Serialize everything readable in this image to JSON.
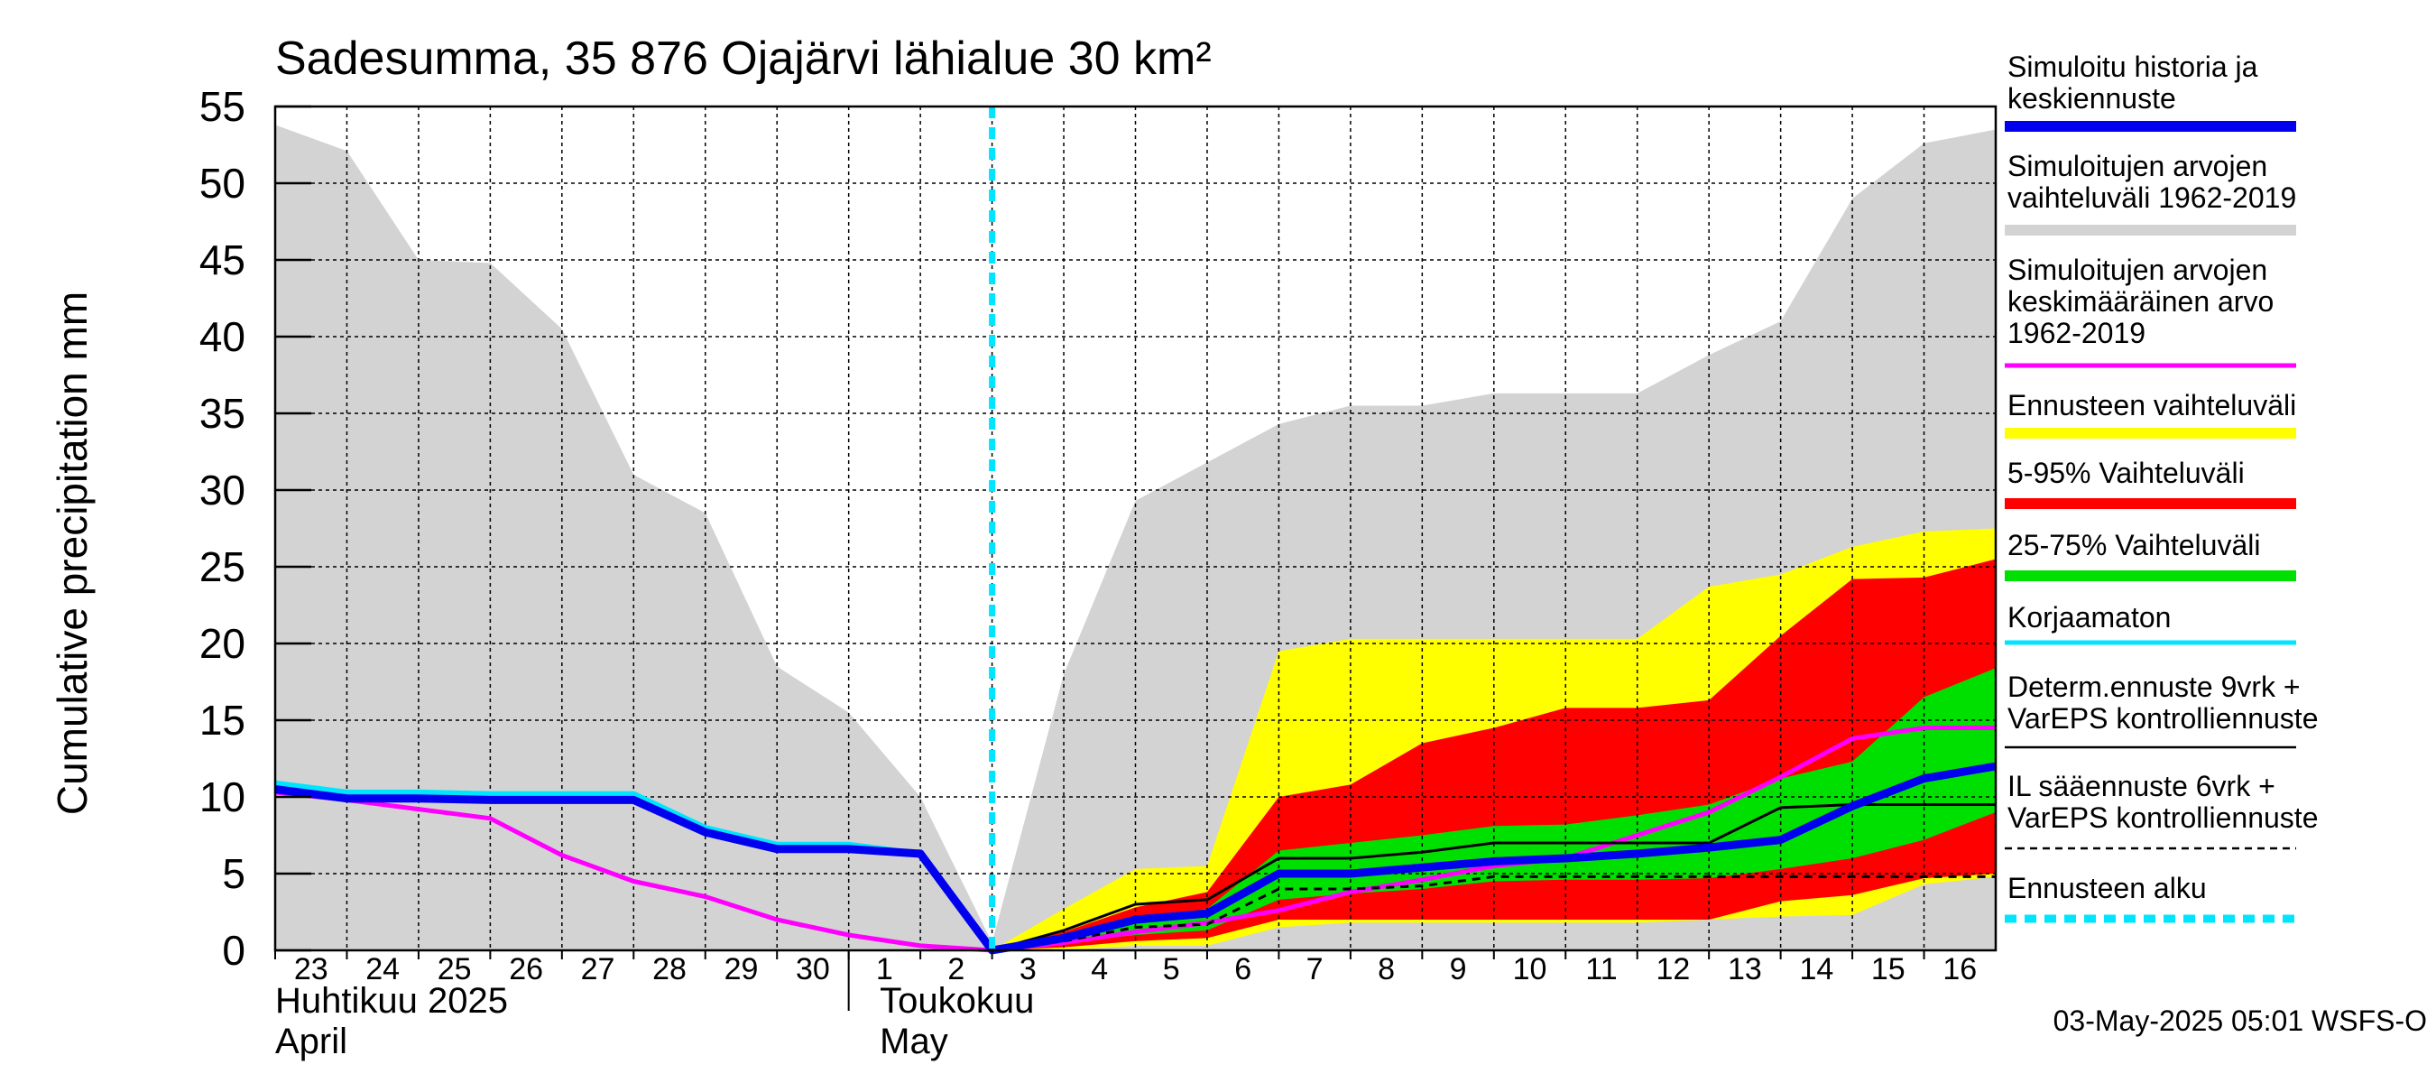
{
  "chart_data": {
    "type": "area",
    "title": "Sadesumma, 35 876 Ojajärvi lähialue 30 km²",
    "ylabel": "Cumulative precipitation   mm",
    "ylim": [
      0,
      55
    ],
    "yticks": [
      0,
      5,
      10,
      15,
      20,
      25,
      30,
      35,
      40,
      45,
      50,
      55
    ],
    "x": [
      "2025-04-23",
      "2025-04-24",
      "2025-04-25",
      "2025-04-26",
      "2025-04-27",
      "2025-04-28",
      "2025-04-29",
      "2025-04-30",
      "2025-05-01",
      "2025-05-02",
      "2025-05-03",
      "2025-05-04",
      "2025-05-05",
      "2025-05-06",
      "2025-05-07",
      "2025-05-08",
      "2025-05-09",
      "2025-05-10",
      "2025-05-11",
      "2025-05-12",
      "2025-05-13",
      "2025-05-14",
      "2025-05-15",
      "2025-05-16",
      "2025-05-17"
    ],
    "xtick_labels": [
      "23",
      "24",
      "25",
      "26",
      "27",
      "28",
      "29",
      "30",
      "1",
      "2",
      "3",
      "4",
      "5",
      "6",
      "7",
      "8",
      "9",
      "10",
      "11",
      "12",
      "13",
      "14",
      "15",
      "16"
    ],
    "month_labels": [
      {
        "line1": "Huhtikuu  2025",
        "line2": "April"
      },
      {
        "line1": "Toukokuu",
        "line2": "May"
      }
    ],
    "forecast_start": "2025-05-03",
    "series": [
      {
        "name": "Simuloitujen arvojen vaihteluväli 1962-2019",
        "kind": "band",
        "color": "#d3d3d3",
        "x": [
          "2025-04-23",
          "2025-04-24",
          "2025-04-25",
          "2025-04-26",
          "2025-04-27",
          "2025-04-28",
          "2025-04-29",
          "2025-04-30",
          "2025-05-01",
          "2025-05-02",
          "2025-05-03",
          "2025-05-04",
          "2025-05-05",
          "2025-05-06",
          "2025-05-07",
          "2025-05-08",
          "2025-05-09",
          "2025-05-10",
          "2025-05-11",
          "2025-05-12",
          "2025-05-13",
          "2025-05-14",
          "2025-05-15",
          "2025-05-16",
          "2025-05-17"
        ],
        "upper": [
          53.8,
          52.1,
          45.0,
          44.8,
          40.5,
          31.0,
          28.5,
          18.5,
          15.5,
          10.0,
          0.5,
          18.0,
          29.3,
          31.8,
          34.3,
          35.5,
          35.5,
          36.3,
          36.3,
          36.3,
          38.8,
          41.0,
          49.0,
          52.6,
          53.5
        ],
        "lower": [
          0,
          0,
          0,
          0,
          0,
          0,
          0,
          0,
          0,
          0,
          0,
          0,
          0,
          0,
          0,
          0,
          0,
          0,
          0,
          0,
          0,
          0,
          0,
          0,
          0
        ]
      },
      {
        "name": "Ennusteen vaihteluväli",
        "kind": "band",
        "color": "#ffff00",
        "x": [
          "2025-05-03",
          "2025-05-04",
          "2025-05-05",
          "2025-05-06",
          "2025-05-07",
          "2025-05-08",
          "2025-05-09",
          "2025-05-10",
          "2025-05-11",
          "2025-05-12",
          "2025-05-13",
          "2025-05-14",
          "2025-05-15",
          "2025-05-16",
          "2025-05-17"
        ],
        "upper": [
          0,
          2.7,
          5.3,
          5.5,
          19.5,
          20.3,
          20.3,
          20.3,
          20.3,
          20.3,
          23.7,
          24.5,
          26.3,
          27.3,
          27.5
        ],
        "lower": [
          0,
          0,
          0.3,
          0.3,
          1.5,
          1.8,
          1.8,
          1.8,
          1.8,
          1.8,
          2.0,
          2.2,
          2.3,
          4.3,
          4.8
        ]
      },
      {
        "name": "5-95% Vaihteluväli",
        "kind": "band",
        "color": "#ff0000",
        "x": [
          "2025-05-03",
          "2025-05-04",
          "2025-05-05",
          "2025-05-06",
          "2025-05-07",
          "2025-05-08",
          "2025-05-09",
          "2025-05-10",
          "2025-05-11",
          "2025-05-12",
          "2025-05-13",
          "2025-05-14",
          "2025-05-15",
          "2025-05-16",
          "2025-05-17"
        ],
        "upper": [
          0,
          1.2,
          2.8,
          3.8,
          10.0,
          10.8,
          13.5,
          14.5,
          15.8,
          15.8,
          16.3,
          20.5,
          24.2,
          24.3,
          25.5
        ],
        "lower": [
          0,
          0.2,
          0.6,
          0.8,
          2.0,
          2.0,
          2.0,
          2.0,
          2.0,
          2.0,
          2.0,
          3.2,
          3.6,
          4.7,
          5.0
        ]
      },
      {
        "name": "25-75% Vaihteluväli",
        "kind": "band",
        "color": "#00e000",
        "x": [
          "2025-05-03",
          "2025-05-04",
          "2025-05-05",
          "2025-05-06",
          "2025-05-07",
          "2025-05-08",
          "2025-05-09",
          "2025-05-10",
          "2025-05-11",
          "2025-05-12",
          "2025-05-13",
          "2025-05-14",
          "2025-05-15",
          "2025-05-16",
          "2025-05-17"
        ],
        "upper": [
          0,
          0.8,
          2.0,
          2.7,
          6.5,
          7.0,
          7.5,
          8.1,
          8.2,
          8.8,
          9.5,
          11.2,
          12.3,
          16.5,
          18.4
        ],
        "lower": [
          0,
          0.5,
          1.0,
          1.3,
          3.3,
          3.7,
          4.0,
          4.5,
          4.6,
          4.6,
          4.7,
          5.3,
          6.0,
          7.2,
          9.0
        ]
      },
      {
        "name": "Simuloitujen arvojen keskimääräinen arvo 1962-2019",
        "kind": "line",
        "color": "#ff00ff",
        "width": 5,
        "x": [
          "2025-04-23",
          "2025-04-24",
          "2025-04-25",
          "2025-04-26",
          "2025-04-27",
          "2025-04-28",
          "2025-04-29",
          "2025-04-30",
          "2025-05-01",
          "2025-05-02",
          "2025-05-03",
          "2025-05-04",
          "2025-05-05",
          "2025-05-06",
          "2025-05-07",
          "2025-05-08",
          "2025-05-09",
          "2025-05-10",
          "2025-05-11",
          "2025-05-12",
          "2025-05-13",
          "2025-05-14",
          "2025-05-15",
          "2025-05-16",
          "2025-05-17"
        ],
        "values": [
          10.3,
          9.8,
          9.2,
          8.6,
          6.2,
          4.5,
          3.5,
          2.0,
          1.0,
          0.3,
          0,
          0.5,
          1.2,
          1.8,
          2.6,
          3.8,
          4.6,
          5.5,
          6.0,
          7.5,
          9.0,
          11.3,
          13.8,
          14.5,
          14.5
        ]
      },
      {
        "name": "Korjaamaton",
        "kind": "line",
        "color": "#00e5ff",
        "width": 6,
        "x": [
          "2025-04-23",
          "2025-04-24",
          "2025-04-25",
          "2025-04-26",
          "2025-04-27",
          "2025-04-28",
          "2025-04-29",
          "2025-04-30",
          "2025-05-01",
          "2025-05-02",
          "2025-05-03"
        ],
        "values": [
          10.9,
          10.3,
          10.3,
          10.2,
          10.2,
          10.2,
          8.0,
          6.9,
          6.9,
          6.3,
          0
        ]
      },
      {
        "name": "IL sääennuste 6vrk + VarEPS kontrolliennuste",
        "kind": "line",
        "color": "#000000",
        "width": 3,
        "dash": "9,7",
        "x": [
          "2025-05-03",
          "2025-05-04",
          "2025-05-05",
          "2025-05-06",
          "2025-05-07",
          "2025-05-08",
          "2025-05-09",
          "2025-05-10",
          "2025-05-11",
          "2025-05-12",
          "2025-05-13",
          "2025-05-14",
          "2025-05-15",
          "2025-05-16",
          "2025-05-17"
        ],
        "values": [
          0,
          0.6,
          1.5,
          1.7,
          4.0,
          4.0,
          4.2,
          4.8,
          4.8,
          4.8,
          4.8,
          4.8,
          4.8,
          4.8,
          4.8
        ]
      },
      {
        "name": "Determ.ennuste 9vrk + VarEPS kontrolliennuste",
        "kind": "line",
        "color": "#000000",
        "width": 3,
        "x": [
          "2025-05-03",
          "2025-05-04",
          "2025-05-05",
          "2025-05-06",
          "2025-05-07",
          "2025-05-08",
          "2025-05-09",
          "2025-05-10",
          "2025-05-11",
          "2025-05-12",
          "2025-05-13",
          "2025-05-14",
          "2025-05-15",
          "2025-05-16",
          "2025-05-17"
        ],
        "values": [
          0,
          1.3,
          3.0,
          3.3,
          6.0,
          6.0,
          6.4,
          7.0,
          7.0,
          7.0,
          7.0,
          9.3,
          9.5,
          9.5,
          9.5
        ]
      },
      {
        "name": "Simuloitu historia ja keskiennuste",
        "kind": "line",
        "color": "#0000ee",
        "width": 9,
        "x": [
          "2025-04-23",
          "2025-04-24",
          "2025-04-25",
          "2025-04-26",
          "2025-04-27",
          "2025-04-28",
          "2025-04-29",
          "2025-04-30",
          "2025-05-01",
          "2025-05-02",
          "2025-05-03",
          "2025-05-04",
          "2025-05-05",
          "2025-05-06",
          "2025-05-07",
          "2025-05-08",
          "2025-05-09",
          "2025-05-10",
          "2025-05-11",
          "2025-05-12",
          "2025-05-13",
          "2025-05-14",
          "2025-05-15",
          "2025-05-16",
          "2025-05-17"
        ],
        "values": [
          10.5,
          9.9,
          9.9,
          9.8,
          9.8,
          9.8,
          7.7,
          6.6,
          6.6,
          6.3,
          0,
          0.8,
          2.0,
          2.4,
          5.0,
          5.0,
          5.4,
          5.8,
          6.0,
          6.3,
          6.7,
          7.2,
          9.4,
          11.2,
          12.0
        ]
      },
      {
        "name": "Ennusteen alku",
        "kind": "vline",
        "color": "#00e5ff",
        "width": 7,
        "dash": "13,10",
        "x": [
          "2025-05-03"
        ]
      }
    ],
    "legend": {
      "placement": "right",
      "entries": [
        {
          "text": [
            "Simuloitu historia ja",
            "keskiennuste"
          ],
          "color": "#0000ee",
          "style": "thick"
        },
        {
          "text": [
            "Simuloitujen arvojen",
            "vaihteluväli 1962-2019"
          ],
          "color": "#d3d3d3",
          "style": "thick"
        },
        {
          "text": [
            "Simuloitujen arvojen",
            "keskimääräinen arvo",
            "   1962-2019"
          ],
          "color": "#ff00ff",
          "style": "thin"
        },
        {
          "text": [
            "Ennusteen vaihteluväli"
          ],
          "color": "#ffff00",
          "style": "thick"
        },
        {
          "text": [
            "5-95% Vaihteluväli"
          ],
          "color": "#ff0000",
          "style": "thick"
        },
        {
          "text": [
            "25-75% Vaihteluväli"
          ],
          "color": "#00e000",
          "style": "thick"
        },
        {
          "text": [
            "Korjaamaton"
          ],
          "color": "#00e5ff",
          "style": "thin"
        },
        {
          "text": [
            "Determ.ennuste 9vrk +",
            "VarEPS kontrolliennuste"
          ],
          "color": "#000000",
          "style": "hair"
        },
        {
          "text": [
            "IL sääennuste 6vrk  +",
            "  VarEPS kontrolliennuste"
          ],
          "color": "#000000",
          "style": "dashed"
        },
        {
          "text": [
            "Ennusteen alku"
          ],
          "color": "#00e5ff",
          "style": "dotted"
        }
      ]
    },
    "grid": true
  },
  "footer": {
    "timestamp": "03-May-2025 05:01 WSFS-O"
  }
}
